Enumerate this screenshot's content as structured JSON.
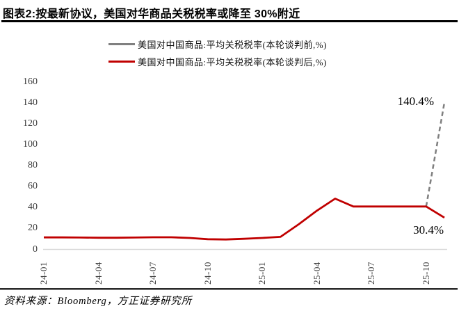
{
  "header": {
    "title": "图表2:按最新协议，美国对华商品关税税率或降至 30%附近"
  },
  "legend": [
    {
      "label": "美国对中国商品:平均关税税率(本轮谈判前,%)",
      "color": "#808080"
    },
    {
      "label": "美国对中国商品:平均关税税率(本轮谈判后,%)",
      "color": "#c00000"
    }
  ],
  "chart_data": {
    "type": "line",
    "title": "图表2:按最新协议，美国对华商品关税税率或降至 30%附近",
    "x": [
      "24-01",
      "24-02",
      "24-03",
      "24-04",
      "24-05",
      "24-06",
      "24-07",
      "24-08",
      "24-09",
      "24-10",
      "24-11",
      "24-12",
      "25-01",
      "25-02",
      "25-03",
      "25-04",
      "25-05",
      "25-06",
      "25-07",
      "25-08",
      "25-09",
      "25-10",
      "25-11"
    ],
    "series": [
      {
        "name": "美国对中国商品:平均关税税率(本轮谈判前,%)",
        "color": "#7f7f7f",
        "dashed": true,
        "values": [
          null,
          null,
          null,
          null,
          null,
          null,
          null,
          null,
          null,
          null,
          null,
          null,
          null,
          null,
          null,
          null,
          null,
          null,
          null,
          null,
          null,
          41,
          140.4
        ]
      },
      {
        "name": "美国对中国商品:平均关税税率(本轮谈判后,%)",
        "color": "#c00000",
        "dashed": false,
        "values": [
          11.5,
          11.5,
          11.4,
          11.2,
          11.2,
          11.4,
          11.6,
          11.6,
          11.0,
          9.8,
          9.5,
          10.2,
          11.0,
          12.0,
          24.0,
          37.0,
          48.5,
          41.0,
          41.0,
          41.0,
          41.0,
          41.0,
          30.4
        ]
      }
    ],
    "ylim": [
      0,
      160
    ],
    "y_ticks": [
      0,
      20,
      40,
      60,
      80,
      100,
      120,
      140,
      160
    ],
    "x_tick_labels": [
      "24-01",
      "24-04",
      "24-07",
      "24-10",
      "25-01",
      "25-04",
      "25-07",
      "25-10"
    ],
    "grid": false,
    "legend_position": "top",
    "annotations": [
      {
        "text": "140.4%",
        "target": "25-11 before-talks value"
      },
      {
        "text": "30.4%",
        "target": "25-11 after-talks value"
      }
    ]
  },
  "annotations": {
    "peak": "140.4%",
    "end": "30.4%"
  },
  "footer": {
    "source": "资料来源：Bloomberg，方正证券研究所"
  },
  "colors": {
    "series_before": "#7f7f7f",
    "series_after": "#c00000",
    "axis_line": "#d9d9d9",
    "tick_text": "#3d3d3d",
    "title_text": "#000000"
  }
}
